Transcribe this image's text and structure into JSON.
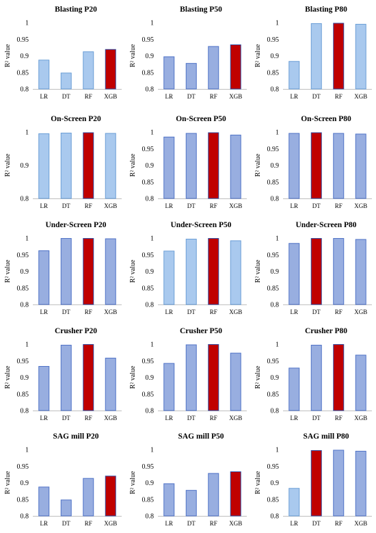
{
  "colors": {
    "light": "#a9c9ee",
    "lightStroke": "#6a9ed6",
    "mid": "#98aee0",
    "midStroke": "#4f72c6",
    "red": "#c00000",
    "redStroke": "#2f4aa0",
    "axis": "#bfbfbf"
  },
  "y_axis_label": "R² value",
  "chart_data": [
    {
      "type": "bar",
      "title": "Blasting P20",
      "categories": [
        "LR",
        "DT",
        "RF",
        "XGB"
      ],
      "values": [
        0.887,
        0.848,
        0.912,
        0.919
      ],
      "ylim": [
        0.8,
        1
      ],
      "yticks": [
        "0.8",
        "0.85",
        "0.9",
        "0.95",
        "1"
      ],
      "ylabel": "R² value",
      "fills": [
        "light",
        "light",
        "light",
        "red"
      ]
    },
    {
      "type": "bar",
      "title": "Blasting P50",
      "categories": [
        "LR",
        "DT",
        "RF",
        "XGB"
      ],
      "values": [
        0.897,
        0.877,
        0.928,
        0.933
      ],
      "ylim": [
        0.8,
        1
      ],
      "yticks": [
        "0.8",
        "0.85",
        "0.9",
        "0.95",
        "1"
      ],
      "ylabel": "R² value",
      "fills": [
        "mid",
        "mid",
        "mid",
        "red"
      ]
    },
    {
      "type": "bar",
      "title": "Blasting P80",
      "categories": [
        "LR",
        "DT",
        "RF",
        "XGB"
      ],
      "values": [
        0.883,
        0.997,
        0.998,
        0.995
      ],
      "ylim": [
        0.8,
        1
      ],
      "yticks": [
        "0.8",
        "0.85",
        "0.9",
        "0.95",
        "1"
      ],
      "ylabel": "R² value",
      "fills": [
        "light",
        "light",
        "red",
        "light"
      ]
    },
    {
      "type": "bar",
      "title": "On-Screen P20",
      "categories": [
        "LR",
        "DT",
        "RF",
        "XGB"
      ],
      "values": [
        0.995,
        0.997,
        0.998,
        0.996
      ],
      "ylim": [
        0.8,
        1
      ],
      "yticks": [
        "0.8",
        "0.9",
        "1"
      ],
      "ylabel": "R² value",
      "fills": [
        "light",
        "light",
        "red",
        "light"
      ]
    },
    {
      "type": "bar",
      "title": "On-Screen P50",
      "categories": [
        "LR",
        "DT",
        "RF",
        "XGB"
      ],
      "values": [
        0.985,
        0.996,
        0.998,
        0.991
      ],
      "ylim": [
        0.8,
        1
      ],
      "yticks": [
        "0.8",
        "0.85",
        "0.9",
        "0.95",
        "1"
      ],
      "ylabel": "R² value",
      "fills": [
        "mid",
        "mid",
        "red",
        "mid"
      ]
    },
    {
      "type": "bar",
      "title": "On-Screen P80",
      "categories": [
        "LR",
        "DT",
        "RF",
        "XGB"
      ],
      "values": [
        0.996,
        0.998,
        0.996,
        0.994
      ],
      "ylim": [
        0.8,
        1
      ],
      "yticks": [
        "0.8",
        "0.85",
        "0.9",
        "0.95",
        "1"
      ],
      "ylabel": "R² value",
      "fills": [
        "mid",
        "red",
        "mid",
        "mid"
      ]
    },
    {
      "type": "bar",
      "title": "Under-Screen P20",
      "categories": [
        "LR",
        "DT",
        "RF",
        "XGB"
      ],
      "values": [
        0.962,
        0.999,
        0.999,
        0.998
      ],
      "ylim": [
        0.8,
        1
      ],
      "yticks": [
        "0.8",
        "0.85",
        "0.9",
        "0.95",
        "1"
      ],
      "ylabel": "R² value",
      "fills": [
        "mid",
        "mid",
        "red",
        "mid"
      ]
    },
    {
      "type": "bar",
      "title": "Under-Screen P50",
      "categories": [
        "LR",
        "DT",
        "RF",
        "XGB"
      ],
      "values": [
        0.961,
        0.997,
        0.999,
        0.992
      ],
      "ylim": [
        0.8,
        1
      ],
      "yticks": [
        "0.8",
        "0.85",
        "0.9",
        "0.95",
        "1"
      ],
      "ylabel": "R² value",
      "fills": [
        "light",
        "light",
        "red",
        "light"
      ]
    },
    {
      "type": "bar",
      "title": "Under-Screen P80",
      "categories": [
        "LR",
        "DT",
        "RF",
        "XGB"
      ],
      "values": [
        0.984,
        0.999,
        0.999,
        0.996
      ],
      "ylim": [
        0.8,
        1
      ],
      "yticks": [
        "0.8",
        "0.85",
        "0.9",
        "0.95",
        "1"
      ],
      "ylabel": "R² value",
      "fills": [
        "mid",
        "red",
        "mid",
        "mid"
      ]
    },
    {
      "type": "bar",
      "title": "Crusher P20",
      "categories": [
        "LR",
        "DT",
        "RF",
        "XGB"
      ],
      "values": [
        0.933,
        0.997,
        0.999,
        0.958
      ],
      "ylim": [
        0.8,
        1
      ],
      "yticks": [
        "0.8",
        "0.85",
        "0.9",
        "0.95",
        "1"
      ],
      "ylabel": "R² value",
      "fills": [
        "mid",
        "mid",
        "red",
        "mid"
      ]
    },
    {
      "type": "bar",
      "title": "Crusher P50",
      "categories": [
        "LR",
        "DT",
        "RF",
        "XGB"
      ],
      "values": [
        0.942,
        0.998,
        0.999,
        0.973
      ],
      "ylim": [
        0.8,
        1
      ],
      "yticks": [
        "0.8",
        "0.85",
        "0.9",
        "0.95",
        "1"
      ],
      "ylabel": "R² value",
      "fills": [
        "mid",
        "mid",
        "red",
        "mid"
      ]
    },
    {
      "type": "bar",
      "title": "Crusher P80",
      "categories": [
        "LR",
        "DT",
        "RF",
        "XGB"
      ],
      "values": [
        0.928,
        0.997,
        0.999,
        0.967
      ],
      "ylim": [
        0.8,
        1
      ],
      "yticks": [
        "0.8",
        "0.85",
        "0.9",
        "0.95",
        "1"
      ],
      "ylabel": "R² value",
      "fills": [
        "mid",
        "mid",
        "red",
        "mid"
      ]
    },
    {
      "type": "bar",
      "title": "SAG mill P20",
      "categories": [
        "LR",
        "DT",
        "RF",
        "XGB"
      ],
      "values": [
        0.887,
        0.848,
        0.913,
        0.92
      ],
      "ylim": [
        0.8,
        1
      ],
      "yticks": [
        "0.8",
        "0.85",
        "0.9",
        "0.95",
        "1"
      ],
      "ylabel": "R² value",
      "fills": [
        "mid",
        "mid",
        "mid",
        "red"
      ]
    },
    {
      "type": "bar",
      "title": "SAG mill P50",
      "categories": [
        "LR",
        "DT",
        "RF",
        "XGB"
      ],
      "values": [
        0.897,
        0.877,
        0.928,
        0.933
      ],
      "ylim": [
        0.8,
        1
      ],
      "yticks": [
        "0.8",
        "0.85",
        "0.9",
        "0.95",
        "1"
      ],
      "ylabel": "R² value",
      "fills": [
        "mid",
        "mid",
        "mid",
        "red"
      ]
    },
    {
      "type": "bar",
      "title": "SAG mill P80",
      "categories": [
        "LR",
        "DT",
        "RF",
        "XGB"
      ],
      "values": [
        0.883,
        0.997,
        0.998,
        0.995
      ],
      "ylim": [
        0.8,
        1
      ],
      "yticks": [
        "0.8",
        "0.85",
        "0.9",
        "0.95",
        "1"
      ],
      "ylabel": "R² value",
      "fills": [
        "light",
        "red",
        "mid",
        "mid"
      ]
    }
  ]
}
